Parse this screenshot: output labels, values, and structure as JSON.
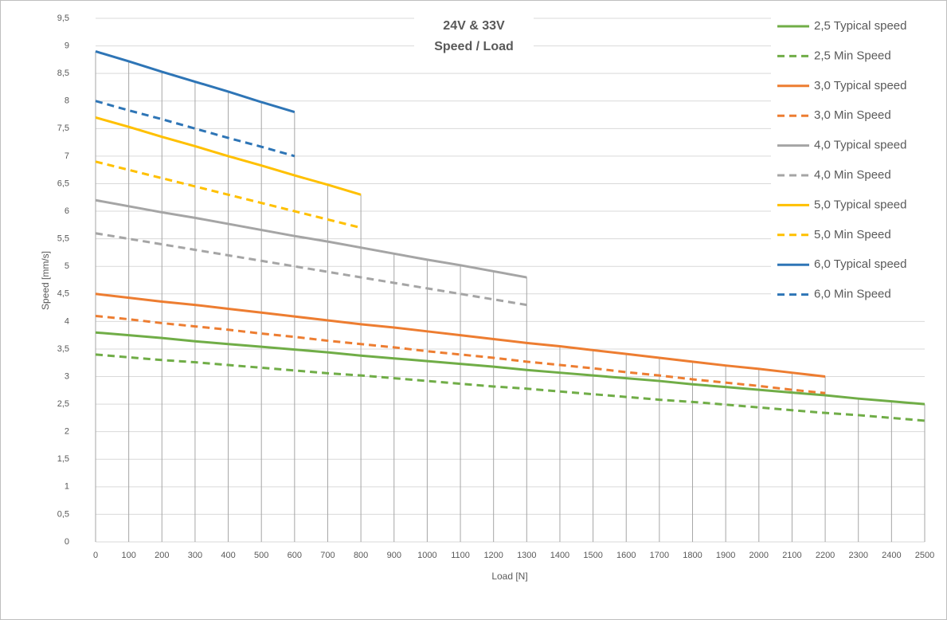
{
  "chart_data": {
    "type": "line",
    "title": "24V & 33V",
    "subtitle": "Speed / Load",
    "xlabel": "Load [N]",
    "ylabel": "Speed [mm/s]",
    "x": [
      0,
      100,
      200,
      300,
      400,
      500,
      600,
      700,
      800,
      900,
      1000,
      1100,
      1200,
      1300,
      1400,
      1500,
      1600,
      1700,
      1800,
      1900,
      2000,
      2100,
      2200,
      2300,
      2400,
      2500
    ],
    "xlim": [
      0,
      2500
    ],
    "xticks": [
      0,
      100,
      200,
      300,
      400,
      500,
      600,
      700,
      800,
      900,
      1000,
      1100,
      1200,
      1300,
      1400,
      1500,
      1600,
      1700,
      1800,
      1900,
      2000,
      2100,
      2200,
      2300,
      2400,
      2500
    ],
    "ylim": [
      0,
      9.5
    ],
    "yticks": [
      0,
      {
        "value": 0.5,
        "label": "0,5"
      },
      1,
      {
        "value": 1.5,
        "label": "1,5"
      },
      2,
      {
        "value": 2.5,
        "label": "2,5"
      },
      3,
      {
        "value": 3.5,
        "label": "3,5"
      },
      4,
      {
        "value": 4.5,
        "label": "4,5"
      },
      5,
      {
        "value": 5.5,
        "label": "5,5"
      },
      6,
      {
        "value": 6.5,
        "label": "6,5"
      },
      7,
      {
        "value": 7.5,
        "label": "7,5"
      },
      8,
      {
        "value": 8.5,
        "label": "8,5"
      },
      9,
      {
        "value": 9.5,
        "label": "9,5"
      }
    ],
    "grid": true,
    "drop_lines": true,
    "legend": "right",
    "series": [
      {
        "name": "2,5 Typical speed",
        "color": "#70ad47",
        "dashed": false,
        "values": [
          3.8,
          3.75,
          3.7,
          3.64,
          3.59,
          3.54,
          3.49,
          3.44,
          3.38,
          3.33,
          3.28,
          3.23,
          3.18,
          3.12,
          3.07,
          3.02,
          2.97,
          2.92,
          2.86,
          2.81,
          2.76,
          2.71,
          2.66,
          2.6,
          2.55,
          2.5
        ]
      },
      {
        "name": "2,5 Min Speed",
        "color": "#70ad47",
        "dashed": true,
        "values": [
          3.4,
          3.35,
          3.3,
          3.26,
          3.21,
          3.16,
          3.11,
          3.06,
          3.02,
          2.97,
          2.92,
          2.87,
          2.82,
          2.78,
          2.73,
          2.68,
          2.63,
          2.58,
          2.54,
          2.49,
          2.44,
          2.39,
          2.34,
          2.3,
          2.25,
          2.2
        ]
      },
      {
        "name": "3,0 Typical speed",
        "color": "#ed7d31",
        "dashed": false,
        "values": [
          4.5,
          4.43,
          4.36,
          4.3,
          4.23,
          4.16,
          4.09,
          4.02,
          3.95,
          3.89,
          3.82,
          3.75,
          3.68,
          3.61,
          3.55,
          3.48,
          3.41,
          3.34,
          3.27,
          3.2,
          3.14,
          3.07,
          3.0,
          null,
          null,
          null
        ]
      },
      {
        "name": "3,0 Min Speed",
        "color": "#ed7d31",
        "dashed": true,
        "values": [
          4.1,
          4.04,
          3.97,
          3.91,
          3.85,
          3.78,
          3.72,
          3.65,
          3.59,
          3.53,
          3.46,
          3.4,
          3.34,
          3.27,
          3.21,
          3.15,
          3.08,
          3.02,
          2.95,
          2.89,
          2.83,
          2.76,
          2.7,
          null,
          null,
          null
        ]
      },
      {
        "name": "4,0 Typical speed",
        "color": "#a5a5a5",
        "dashed": false,
        "values": [
          6.2,
          6.09,
          5.98,
          5.88,
          5.77,
          5.66,
          5.55,
          5.45,
          5.34,
          5.23,
          5.12,
          5.02,
          4.91,
          4.8,
          null,
          null,
          null,
          null,
          null,
          null,
          null,
          null,
          null,
          null,
          null,
          null
        ]
      },
      {
        "name": "4,0 Min Speed",
        "color": "#a5a5a5",
        "dashed": true,
        "values": [
          5.6,
          5.5,
          5.4,
          5.3,
          5.2,
          5.1,
          5.0,
          4.9,
          4.8,
          4.7,
          4.6,
          4.5,
          4.4,
          4.3,
          null,
          null,
          null,
          null,
          null,
          null,
          null,
          null,
          null,
          null,
          null,
          null
        ]
      },
      {
        "name": "5,0 Typical speed",
        "color": "#ffc000",
        "dashed": false,
        "values": [
          7.7,
          7.53,
          7.35,
          7.18,
          7.0,
          6.83,
          6.65,
          6.48,
          6.3,
          null,
          null,
          null,
          null,
          null,
          null,
          null,
          null,
          null,
          null,
          null,
          null,
          null,
          null,
          null,
          null,
          null
        ]
      },
      {
        "name": "5,0 Min Speed",
        "color": "#ffc000",
        "dashed": true,
        "values": [
          6.9,
          6.75,
          6.6,
          6.45,
          6.3,
          6.15,
          6.0,
          5.85,
          5.7,
          null,
          null,
          null,
          null,
          null,
          null,
          null,
          null,
          null,
          null,
          null,
          null,
          null,
          null,
          null,
          null,
          null
        ]
      },
      {
        "name": "6,0 Typical speed",
        "color": "#2e75b6",
        "dashed": false,
        "values": [
          8.9,
          8.72,
          8.53,
          8.35,
          8.17,
          7.98,
          7.8,
          null,
          null,
          null,
          null,
          null,
          null,
          null,
          null,
          null,
          null,
          null,
          null,
          null,
          null,
          null,
          null,
          null,
          null,
          null
        ]
      },
      {
        "name": "6,0 Min Speed",
        "color": "#2e75b6",
        "dashed": true,
        "values": [
          8.0,
          7.83,
          7.67,
          7.5,
          7.33,
          7.17,
          7.0,
          null,
          null,
          null,
          null,
          null,
          null,
          null,
          null,
          null,
          null,
          null,
          null,
          null,
          null,
          null,
          null,
          null,
          null,
          null
        ]
      }
    ]
  }
}
